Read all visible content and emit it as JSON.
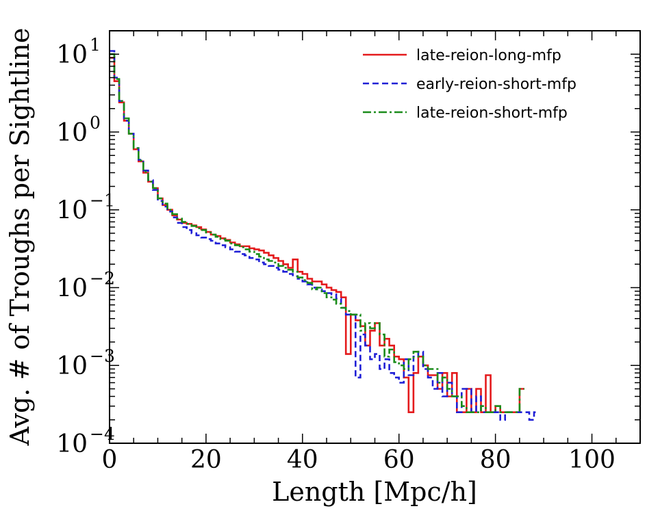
{
  "chart_data": {
    "type": "line",
    "style": "step-histogram",
    "title": "",
    "xlabel": "Length [Mpc/h]",
    "ylabel": "Avg. # of Troughs per Sightline",
    "xlim": [
      0,
      110
    ],
    "ylim": [
      0.0001,
      20
    ],
    "yscale": "log",
    "bin_width": 1,
    "x_ticks": [
      0,
      20,
      40,
      60,
      80,
      100
    ],
    "x_tick_labels": [
      "0",
      "20",
      "40",
      "60",
      "80",
      "100"
    ],
    "y_ticks": [
      0.0001,
      0.001,
      0.01,
      0.1,
      1,
      10
    ],
    "y_tick_labels": [
      {
        "base": "10",
        "exp": "−4"
      },
      {
        "base": "10",
        "exp": "−3"
      },
      {
        "base": "10",
        "exp": "−2"
      },
      {
        "base": "10",
        "exp": "−1"
      },
      {
        "base": "10",
        "exp": "0"
      },
      {
        "base": "10",
        "exp": "1"
      }
    ],
    "legend_position": "top-right",
    "series": [
      {
        "name": "late-reion-long-mfp",
        "color": "#e41a1c",
        "dash": "solid",
        "values": [
          9.0,
          4.5,
          2.4,
          1.4,
          0.95,
          0.6,
          0.42,
          0.3,
          0.23,
          0.19,
          0.14,
          0.115,
          0.1,
          0.085,
          0.075,
          0.068,
          0.066,
          0.063,
          0.06,
          0.056,
          0.052,
          0.048,
          0.046,
          0.043,
          0.041,
          0.038,
          0.036,
          0.034,
          0.034,
          0.032,
          0.031,
          0.03,
          0.028,
          0.026,
          0.024,
          0.022,
          0.02,
          0.018,
          0.023,
          0.016,
          0.015,
          0.013,
          0.012,
          0.012,
          0.011,
          0.01,
          0.0093,
          0.0088,
          0.0075,
          0.0014,
          0.0045,
          0.0038,
          0.0032,
          0.0018,
          0.0028,
          0.0035,
          0.0018,
          0.0022,
          0.0018,
          0.0013,
          0.0012,
          0.0007,
          0.00025,
          0.0008,
          0.0013,
          0.001,
          0.00075,
          0.00075,
          0.0005,
          0.0008,
          0.0004,
          0.0008,
          0.00025,
          0.00025,
          0.0005,
          0.00025,
          0.0005,
          0.00025,
          0.00075,
          0.00025,
          0.0003,
          0.00025,
          0.00025,
          0.00025,
          0.00025,
          0.0005
        ]
      },
      {
        "name": "early-reion-short-mfp",
        "color": "#1f1fd6",
        "dash": "dashed",
        "values": [
          11.0,
          5.0,
          2.5,
          1.4,
          0.95,
          0.62,
          0.44,
          0.32,
          0.24,
          0.18,
          0.13,
          0.11,
          0.095,
          0.08,
          0.068,
          0.06,
          0.055,
          0.05,
          0.047,
          0.044,
          0.042,
          0.04,
          0.037,
          0.035,
          0.033,
          0.031,
          0.029,
          0.027,
          0.026,
          0.024,
          0.023,
          0.021,
          0.02,
          0.019,
          0.018,
          0.017,
          0.016,
          0.015,
          0.014,
          0.013,
          0.012,
          0.011,
          0.01,
          0.0095,
          0.009,
          0.0085,
          0.0082,
          0.0072,
          0.0055,
          0.0045,
          0.0045,
          0.0007,
          0.0025,
          0.0018,
          0.0012,
          0.0014,
          0.0009,
          0.0012,
          0.0008,
          0.0007,
          0.0006,
          0.0012,
          0.00075,
          0.0013,
          0.0015,
          0.0009,
          0.0007,
          0.0005,
          0.0008,
          0.0004,
          0.0006,
          0.0004,
          0.00025,
          0.0005,
          0.0005,
          0.00025,
          0.0004,
          0.00025,
          0.00025,
          0.00025,
          0.00025,
          0.0002,
          0.00025,
          0.00025,
          0.00025,
          0.00025,
          0.00025,
          0.0002,
          0.00025
        ]
      },
      {
        "name": "late-reion-short-mfp",
        "color": "#1a8c1a",
        "dash": "dashdot",
        "values": [
          10.0,
          4.8,
          2.5,
          1.5,
          0.95,
          0.62,
          0.43,
          0.31,
          0.23,
          0.19,
          0.14,
          0.12,
          0.1,
          0.088,
          0.077,
          0.07,
          0.066,
          0.062,
          0.058,
          0.055,
          0.051,
          0.048,
          0.045,
          0.042,
          0.04,
          0.037,
          0.035,
          0.033,
          0.031,
          0.029,
          0.027,
          0.025,
          0.023,
          0.022,
          0.021,
          0.019,
          0.018,
          0.017,
          0.016,
          0.0135,
          0.0125,
          0.0115,
          0.0095,
          0.01,
          0.0085,
          0.0075,
          0.007,
          0.0062,
          0.0055,
          0.005,
          0.0045,
          0.0045,
          0.0028,
          0.0035,
          0.003,
          0.0035,
          0.0025,
          0.0013,
          0.0016,
          0.0011,
          0.001,
          0.0009,
          0.0012,
          0.0015,
          0.0013,
          0.001,
          0.0009,
          0.0009,
          0.0006,
          0.0007,
          0.0005,
          0.0004,
          0.0004,
          0.0003,
          0.00025,
          0.00025,
          0.00025,
          0.0003,
          0.00025,
          0.00025,
          0.0003,
          0.00025,
          0.00025,
          0.00025,
          0.00025,
          0.0005
        ]
      }
    ]
  }
}
